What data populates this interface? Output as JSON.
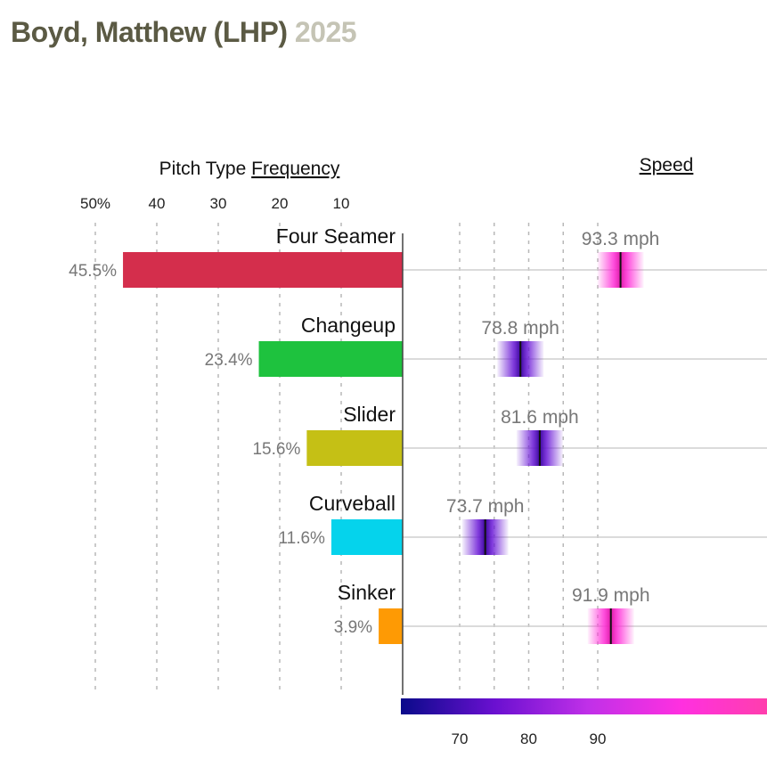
{
  "header": {
    "player": "Boyd, Matthew (LHP)",
    "year": "2025"
  },
  "chart_data": {
    "type": "bar",
    "frequency_panel": {
      "title_prefix": "Pitch Type ",
      "title_link": "Frequency",
      "axis_ticks": [
        {
          "value": 50,
          "label": "50%"
        },
        {
          "value": 40,
          "label": "40"
        },
        {
          "value": 30,
          "label": "30"
        },
        {
          "value": 20,
          "label": "20"
        },
        {
          "value": 10,
          "label": "10"
        }
      ],
      "xlim": [
        0,
        50
      ]
    },
    "speed_panel": {
      "title": "Speed",
      "axis_ticks": [
        {
          "value": 70,
          "label": "70"
        },
        {
          "value": 80,
          "label": "80"
        },
        {
          "value": 90,
          "label": "90"
        }
      ],
      "gridlines": [
        70,
        75,
        80,
        85,
        90
      ],
      "colorbar": [
        "#0a0a8a",
        "#6a10d0",
        "#c030e8",
        "#ff30e0",
        "#ff40a8"
      ]
    },
    "pitches": [
      {
        "name": "Four Seamer",
        "frequency": 45.5,
        "frequency_label": "45.5%",
        "speed": 93.3,
        "speed_label": "93.3 mph",
        "color": "#d42e4c"
      },
      {
        "name": "Changeup",
        "frequency": 23.4,
        "frequency_label": "23.4%",
        "speed": 78.8,
        "speed_label": "78.8 mph",
        "color": "#1ec23e"
      },
      {
        "name": "Slider",
        "frequency": 15.6,
        "frequency_label": "15.6%",
        "speed": 81.6,
        "speed_label": "81.6 mph",
        "color": "#c5c015"
      },
      {
        "name": "Curveball",
        "frequency": 11.6,
        "frequency_label": "11.6%",
        "speed": 73.7,
        "speed_label": "73.7 mph",
        "color": "#05d3ec"
      },
      {
        "name": "Sinker",
        "frequency": 3.9,
        "frequency_label": "3.9%",
        "speed": 91.9,
        "speed_label": "91.9 mph",
        "color": "#fe9a04"
      }
    ]
  }
}
